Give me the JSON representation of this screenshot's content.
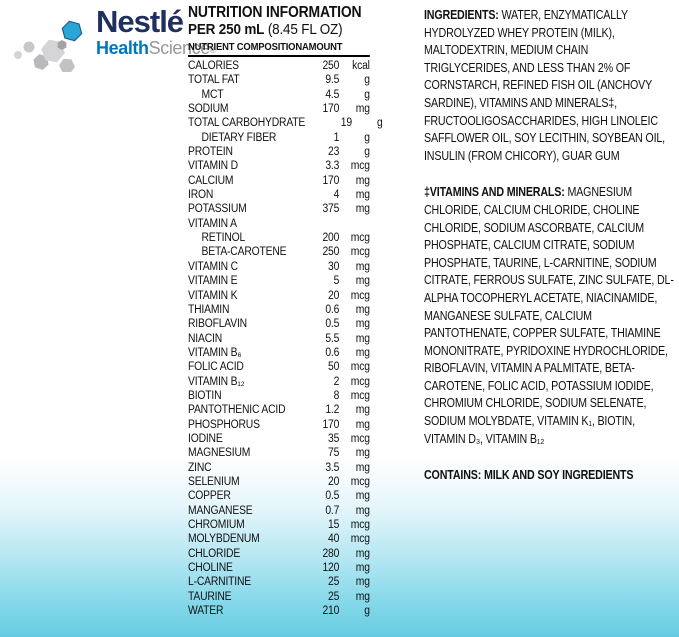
{
  "brand": {
    "name": "Nestlé",
    "tag_health": "Health",
    "tag_science": "Science",
    "registered": "®",
    "colors": {
      "wordmark": "#1f2f5e",
      "health_blue": "#0077bc",
      "science_gray": "#97979b",
      "hex_blue": "#2aa5d6"
    }
  },
  "nutrition": {
    "title": "NUTRITION INFORMATION",
    "serving_bold": "PER 250 mL",
    "serving_rest": " (8.45 FL OZ)",
    "col_nutrient": "NUTRIENT COMPOSITION",
    "col_amount": "AMOUNT",
    "rows": [
      {
        "label": "CALORIES",
        "value": "250",
        "unit": "kcal",
        "indent": false
      },
      {
        "label": "TOTAL FAT",
        "value": "9.5",
        "unit": "g",
        "indent": false
      },
      {
        "label": "MCT",
        "value": "4.5",
        "unit": "g",
        "indent": true
      },
      {
        "label": "SODIUM",
        "value": "170",
        "unit": "mg",
        "indent": false
      },
      {
        "label": "TOTAL CARBOHYDRATE",
        "value": "19",
        "unit": "g",
        "indent": false
      },
      {
        "label": "DIETARY FIBER",
        "value": "1",
        "unit": "g",
        "indent": true
      },
      {
        "label": "PROTEIN",
        "value": "23",
        "unit": "g",
        "indent": false
      },
      {
        "label": "VITAMIN D",
        "value": "3.3",
        "unit": "mcg",
        "indent": false
      },
      {
        "label": "CALCIUM",
        "value": "170",
        "unit": "mg",
        "indent": false
      },
      {
        "label": "IRON",
        "value": "4",
        "unit": "mg",
        "indent": false
      },
      {
        "label": "POTASSIUM",
        "value": "375",
        "unit": "mg",
        "indent": false
      },
      {
        "label": "VITAMIN A",
        "value": "",
        "unit": "",
        "indent": false
      },
      {
        "label": "RETINOL",
        "value": "200",
        "unit": "mcg",
        "indent": true
      },
      {
        "label": "BETA-CAROTENE",
        "value": "250",
        "unit": "mcg",
        "indent": true
      },
      {
        "label": "VITAMIN C",
        "value": "30",
        "unit": "mg",
        "indent": false
      },
      {
        "label": "VITAMIN E",
        "value": "5",
        "unit": "mg",
        "indent": false
      },
      {
        "label": "VITAMIN K",
        "value": "20",
        "unit": "mcg",
        "indent": false
      },
      {
        "label": "THIAMIN",
        "value": "0.6",
        "unit": "mg",
        "indent": false
      },
      {
        "label": "RIBOFLAVIN",
        "value": "0.5",
        "unit": "mg",
        "indent": false
      },
      {
        "label": "NIACIN",
        "value": "5.5",
        "unit": "mg",
        "indent": false
      },
      {
        "label": "VITAMIN B₆",
        "value": "0.6",
        "unit": "mg",
        "indent": false
      },
      {
        "label": "FOLIC ACID",
        "value": "50",
        "unit": "mcg",
        "indent": false
      },
      {
        "label": "VITAMIN B₁₂",
        "value": "2",
        "unit": "mcg",
        "indent": false
      },
      {
        "label": "BIOTIN",
        "value": "8",
        "unit": "mcg",
        "indent": false
      },
      {
        "label": "PANTOTHENIC ACID",
        "value": "1.2",
        "unit": "mg",
        "indent": false
      },
      {
        "label": "PHOSPHORUS",
        "value": "170",
        "unit": "mg",
        "indent": false
      },
      {
        "label": "IODINE",
        "value": "35",
        "unit": "mcg",
        "indent": false
      },
      {
        "label": "MAGNESIUM",
        "value": "75",
        "unit": "mg",
        "indent": false
      },
      {
        "label": "ZINC",
        "value": "3.5",
        "unit": "mg",
        "indent": false
      },
      {
        "label": "SELENIUM",
        "value": "20",
        "unit": "mcg",
        "indent": false
      },
      {
        "label": "COPPER",
        "value": "0.5",
        "unit": "mg",
        "indent": false
      },
      {
        "label": "MANGANESE",
        "value": "0.7",
        "unit": "mg",
        "indent": false
      },
      {
        "label": "CHROMIUM",
        "value": "15",
        "unit": "mcg",
        "indent": false
      },
      {
        "label": "MOLYBDENUM",
        "value": "40",
        "unit": "mcg",
        "indent": false
      },
      {
        "label": "CHLORIDE",
        "value": "280",
        "unit": "mg",
        "indent": false
      },
      {
        "label": "CHOLINE",
        "value": "120",
        "unit": "mg",
        "indent": false
      },
      {
        "label": "L-CARNITINE",
        "value": "25",
        "unit": "mg",
        "indent": false
      },
      {
        "label": "TAURINE",
        "value": "25",
        "unit": "mg",
        "indent": false
      },
      {
        "label": "WATER",
        "value": "210",
        "unit": "g",
        "indent": false
      }
    ]
  },
  "ingredients": {
    "p1_label": "INGREDIENTS:",
    "p1_text": " WATER, ENZYMATICALLY HYDROLYZED WHEY PROTEIN (MILK), MALTODEXTRIN, MEDIUM CHAIN TRIGLYCERIDES, AND LESS THAN 2% OF CORNSTARCH, REFINED FISH OIL (ANCHOVY SARDINE), VITAMINS AND MINERALS‡, FRUCTOOLIGOSACCHARIDES, HIGH LINOLEIC SAFFLOWER OIL, SOY LECITHIN, SOYBEAN OIL, INSULIN (FROM CHICORY), GUAR GUM",
    "p2_label": "‡VITAMINS AND MINERALS:",
    "p2_text": " MAGNESIUM CHLORIDE, CALCIUM CHLORIDE, CHOLINE CHLORIDE, SODIUM ASCORBATE, CALCIUM PHOSPHATE, CALCIUM CITRATE, SODIUM PHOSPHATE, TAURINE, L-CARNITINE, SODIUM CITRATE, FERROUS SULFATE, ZINC SULFATE, DL-ALPHA TOCOPHERYL ACETATE, NIACINAMIDE, MANGANESE SULFATE, CALCIUM PANTOTHENATE, COPPER SULFATE, THIAMINE MONONITRATE, PYRIDOXINE HYDROCHLORIDE, RIBOFLAVIN, VITAMIN A PALMITATE, BETA-CAROTENE, FOLIC ACID, POTASSIUM IODIDE, CHROMIUM CHLORIDE, SODIUM SELENATE, SODIUM MOLYBDATE, VITAMIN K₁, BIOTIN, VITAMIN D₃, VITAMIN B₁₂",
    "contains": "CONTAINS: MILK AND SOY INGREDIENTS"
  },
  "background": {
    "top": "#ffffff",
    "bottom": "#67cce1"
  }
}
